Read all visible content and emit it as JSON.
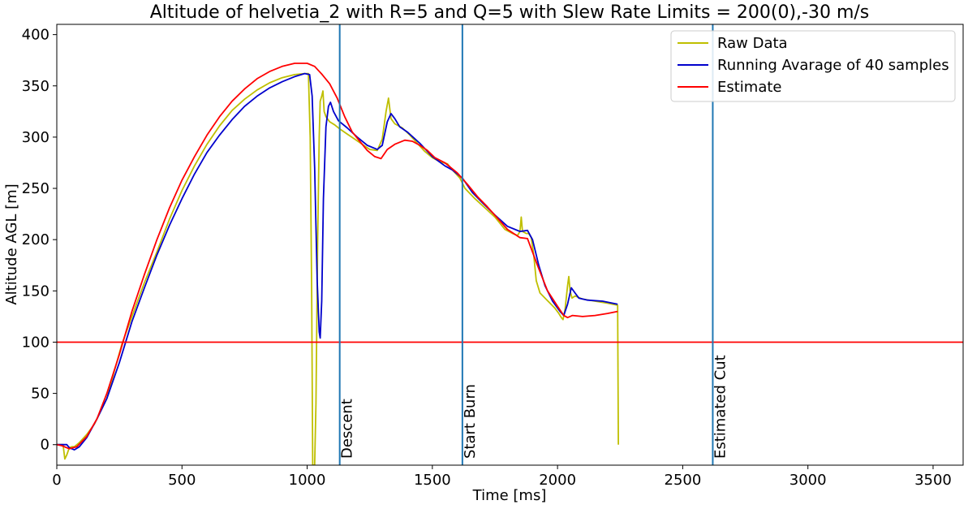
{
  "chart_data": {
    "type": "line",
    "title": "Altitude of helvetia_2 with R=5 and Q=5 with Slew Rate Limits = 200(0),-30 m/s",
    "xlabel": "Time [ms]",
    "ylabel": "Altitude AGL [m]",
    "xlim": [
      0,
      3620
    ],
    "ylim": [
      -20,
      410
    ],
    "xticks": [
      0,
      500,
      1000,
      1500,
      2000,
      2500,
      3000,
      3500
    ],
    "yticks": [
      0,
      50,
      100,
      150,
      200,
      250,
      300,
      350,
      400
    ],
    "grid": false,
    "legend_position": "top-right",
    "series": [
      {
        "name": "Raw Data",
        "color": "#bfbf00",
        "points": [
          [
            0,
            0
          ],
          [
            25,
            0
          ],
          [
            32,
            -14
          ],
          [
            40,
            -10
          ],
          [
            50,
            -3
          ],
          [
            60,
            -2
          ],
          [
            70,
            -2
          ],
          [
            90,
            2
          ],
          [
            120,
            10
          ],
          [
            150,
            20
          ],
          [
            180,
            35
          ],
          [
            200,
            45
          ],
          [
            230,
            72
          ],
          [
            260,
            98
          ],
          [
            300,
            125
          ],
          [
            350,
            158
          ],
          [
            400,
            188
          ],
          [
            450,
            220
          ],
          [
            500,
            248
          ],
          [
            550,
            272
          ],
          [
            600,
            293
          ],
          [
            650,
            311
          ],
          [
            700,
            326
          ],
          [
            750,
            337
          ],
          [
            800,
            346
          ],
          [
            850,
            353
          ],
          [
            900,
            358
          ],
          [
            950,
            361
          ],
          [
            990,
            362
          ],
          [
            1005,
            362
          ],
          [
            1012,
            300
          ],
          [
            1018,
            150
          ],
          [
            1022,
            -20
          ],
          [
            1030,
            -20
          ],
          [
            1035,
            40
          ],
          [
            1042,
            200
          ],
          [
            1048,
            300
          ],
          [
            1052,
            335
          ],
          [
            1058,
            340
          ],
          [
            1063,
            345
          ],
          [
            1068,
            325
          ],
          [
            1075,
            320
          ],
          [
            1090,
            315
          ],
          [
            1110,
            312
          ],
          [
            1130,
            308
          ],
          [
            1160,
            303
          ],
          [
            1190,
            298
          ],
          [
            1220,
            293
          ],
          [
            1250,
            288
          ],
          [
            1280,
            287
          ],
          [
            1300,
            298
          ],
          [
            1315,
            325
          ],
          [
            1325,
            338
          ],
          [
            1335,
            318
          ],
          [
            1350,
            313
          ],
          [
            1380,
            309
          ],
          [
            1410,
            302
          ],
          [
            1440,
            294
          ],
          [
            1470,
            286
          ],
          [
            1500,
            280
          ],
          [
            1530,
            276
          ],
          [
            1560,
            274
          ],
          [
            1580,
            268
          ],
          [
            1595,
            264
          ],
          [
            1610,
            260
          ],
          [
            1630,
            250
          ],
          [
            1670,
            240
          ],
          [
            1710,
            231
          ],
          [
            1750,
            222
          ],
          [
            1790,
            210
          ],
          [
            1820,
            206
          ],
          [
            1840,
            204
          ],
          [
            1850,
            208
          ],
          [
            1855,
            222
          ],
          [
            1860,
            208
          ],
          [
            1875,
            206
          ],
          [
            1885,
            206
          ],
          [
            1895,
            202
          ],
          [
            1905,
            185
          ],
          [
            1915,
            160
          ],
          [
            1930,
            148
          ],
          [
            1950,
            143
          ],
          [
            1970,
            138
          ],
          [
            1990,
            133
          ],
          [
            2005,
            128
          ],
          [
            2015,
            124
          ],
          [
            2022,
            122
          ],
          [
            2030,
            132
          ],
          [
            2040,
            155
          ],
          [
            2045,
            164
          ],
          [
            2050,
            150
          ],
          [
            2058,
            143
          ],
          [
            2070,
            145
          ],
          [
            2100,
            142
          ],
          [
            2150,
            140
          ],
          [
            2200,
            138
          ],
          [
            2240,
            136
          ],
          [
            2243,
            0
          ]
        ]
      },
      {
        "name": "Running Avarage of 40 samples",
        "color": "#0000cc",
        "points": [
          [
            0,
            0
          ],
          [
            40,
            0
          ],
          [
            50,
            -3
          ],
          [
            70,
            -5
          ],
          [
            90,
            -2
          ],
          [
            120,
            7
          ],
          [
            160,
            25
          ],
          [
            200,
            45
          ],
          [
            250,
            80
          ],
          [
            300,
            120
          ],
          [
            350,
            153
          ],
          [
            400,
            185
          ],
          [
            450,
            214
          ],
          [
            500,
            240
          ],
          [
            550,
            264
          ],
          [
            600,
            285
          ],
          [
            650,
            302
          ],
          [
            700,
            317
          ],
          [
            750,
            330
          ],
          [
            800,
            340
          ],
          [
            850,
            348
          ],
          [
            900,
            354
          ],
          [
            950,
            359
          ],
          [
            990,
            362
          ],
          [
            1010,
            361
          ],
          [
            1020,
            340
          ],
          [
            1030,
            270
          ],
          [
            1040,
            160
          ],
          [
            1048,
            110
          ],
          [
            1052,
            104
          ],
          [
            1058,
            140
          ],
          [
            1065,
            240
          ],
          [
            1075,
            310
          ],
          [
            1085,
            330
          ],
          [
            1093,
            334
          ],
          [
            1105,
            325
          ],
          [
            1125,
            316
          ],
          [
            1160,
            309
          ],
          [
            1200,
            300
          ],
          [
            1240,
            292
          ],
          [
            1280,
            288
          ],
          [
            1300,
            292
          ],
          [
            1320,
            315
          ],
          [
            1335,
            323
          ],
          [
            1350,
            318
          ],
          [
            1370,
            310
          ],
          [
            1400,
            305
          ],
          [
            1450,
            294
          ],
          [
            1500,
            281
          ],
          [
            1550,
            272
          ],
          [
            1580,
            268
          ],
          [
            1620,
            260
          ],
          [
            1660,
            246
          ],
          [
            1700,
            236
          ],
          [
            1750,
            224
          ],
          [
            1800,
            213
          ],
          [
            1850,
            208
          ],
          [
            1880,
            209
          ],
          [
            1900,
            200
          ],
          [
            1925,
            175
          ],
          [
            1950,
            155
          ],
          [
            1980,
            140
          ],
          [
            2010,
            130
          ],
          [
            2025,
            126
          ],
          [
            2040,
            137
          ],
          [
            2055,
            153
          ],
          [
            2070,
            148
          ],
          [
            2085,
            143
          ],
          [
            2120,
            141
          ],
          [
            2180,
            140
          ],
          [
            2240,
            137
          ]
        ]
      },
      {
        "name": "Estimate",
        "color": "#ff0000",
        "points": [
          [
            0,
            0
          ],
          [
            20,
            -1
          ],
          [
            50,
            -4
          ],
          [
            80,
            -2
          ],
          [
            120,
            8
          ],
          [
            160,
            25
          ],
          [
            200,
            50
          ],
          [
            250,
            88
          ],
          [
            300,
            130
          ],
          [
            350,
            166
          ],
          [
            400,
            200
          ],
          [
            450,
            231
          ],
          [
            500,
            258
          ],
          [
            550,
            281
          ],
          [
            600,
            302
          ],
          [
            650,
            320
          ],
          [
            700,
            335
          ],
          [
            750,
            347
          ],
          [
            800,
            357
          ],
          [
            850,
            364
          ],
          [
            900,
            369
          ],
          [
            950,
            372
          ],
          [
            1000,
            372
          ],
          [
            1030,
            369
          ],
          [
            1060,
            361
          ],
          [
            1090,
            352
          ],
          [
            1120,
            338
          ],
          [
            1150,
            320
          ],
          [
            1180,
            305
          ],
          [
            1210,
            296
          ],
          [
            1240,
            287
          ],
          [
            1270,
            281
          ],
          [
            1295,
            279
          ],
          [
            1320,
            288
          ],
          [
            1350,
            293
          ],
          [
            1390,
            297
          ],
          [
            1420,
            296
          ],
          [
            1450,
            292
          ],
          [
            1480,
            287
          ],
          [
            1510,
            280
          ],
          [
            1550,
            275
          ],
          [
            1600,
            265
          ],
          [
            1640,
            254
          ],
          [
            1680,
            242
          ],
          [
            1720,
            232
          ],
          [
            1760,
            221
          ],
          [
            1800,
            210
          ],
          [
            1850,
            202
          ],
          [
            1880,
            201
          ],
          [
            1920,
            175
          ],
          [
            1960,
            150
          ],
          [
            2000,
            135
          ],
          [
            2025,
            126
          ],
          [
            2040,
            124
          ],
          [
            2060,
            126
          ],
          [
            2100,
            125
          ],
          [
            2150,
            126
          ],
          [
            2200,
            128
          ],
          [
            2240,
            130
          ]
        ]
      }
    ],
    "hlines": [
      {
        "y": 100,
        "color": "#ff0000"
      }
    ],
    "vlines": [
      {
        "x": 1130,
        "label": "Descent",
        "color": "#1f77b4"
      },
      {
        "x": 1620,
        "label": "Start Burn",
        "color": "#1f77b4"
      },
      {
        "x": 2620,
        "label": "Estimated Cut",
        "color": "#1f77b4"
      }
    ]
  }
}
